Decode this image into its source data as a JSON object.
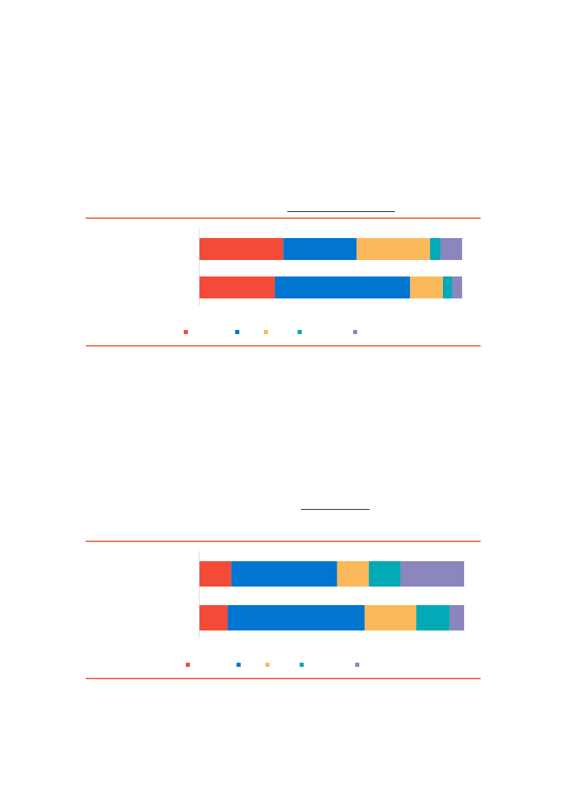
{
  "colors": {
    "rule": "#f4664a",
    "axis": "#d9d9d9"
  },
  "chart_data": [
    {
      "type": "bar",
      "orientation": "horizontal",
      "stacked": true,
      "percent_stacked": true,
      "title": "",
      "categories": [
        "",
        ""
      ],
      "series": [
        {
          "color": "#f44b38",
          "values": [
            31.9,
            28.7
          ]
        },
        {
          "color": "#0076d0",
          "values": [
            27.9,
            51.5
          ]
        },
        {
          "color": "#fcb95c",
          "values": [
            28.0,
            12.5
          ]
        },
        {
          "color": "#00aab7",
          "values": [
            4.0,
            3.5
          ]
        },
        {
          "color": "#8b86be",
          "values": [
            8.2,
            3.8
          ]
        }
      ],
      "legend_position": "bottom",
      "grid": false
    },
    {
      "type": "bar",
      "orientation": "horizontal",
      "stacked": true,
      "percent_stacked": true,
      "title": "",
      "categories": [
        "",
        ""
      ],
      "series": [
        {
          "color": "#f44b38",
          "values": [
            12.0,
            10.6
          ]
        },
        {
          "color": "#0076d0",
          "values": [
            40.0,
            51.8
          ]
        },
        {
          "color": "#fcb95c",
          "values": [
            12.0,
            19.5
          ]
        },
        {
          "color": "#00aab7",
          "values": [
            12.0,
            12.6
          ]
        },
        {
          "color": "#8b86be",
          "values": [
            24.0,
            5.5
          ]
        }
      ],
      "legend_position": "bottom",
      "grid": false
    }
  ]
}
